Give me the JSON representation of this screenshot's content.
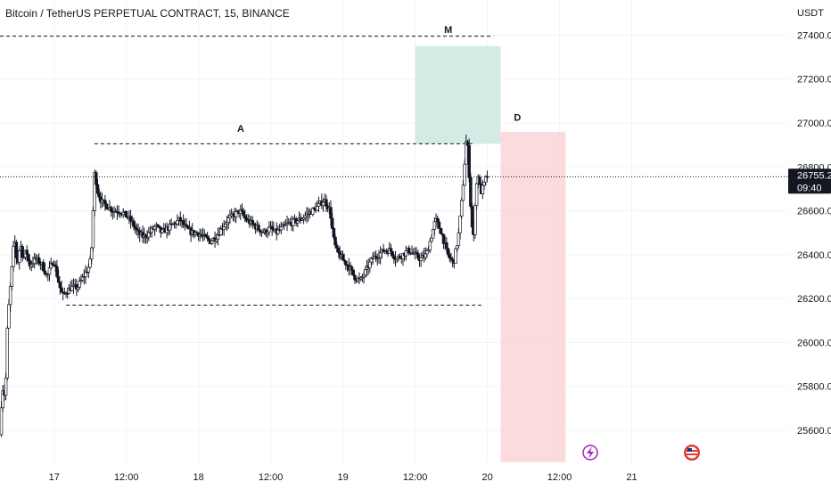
{
  "chart_title": "Bitcoin / TetherUS PERPETUAL CONTRACT, 15, BINANCE",
  "currency": "USDT",
  "colors": {
    "candle_up": "#ffffff",
    "candle_down": "#131722",
    "wick": "#131722",
    "green_zone": "#cfe9e2",
    "red_zone": "#fcd7da",
    "grid": "#f0f3fa",
    "price_tag": "#131722"
  },
  "icons": {
    "lightning": "lightning-icon",
    "flag": "us-flag-icon"
  },
  "chart_data": {
    "type": "candlestick",
    "title": "Bitcoin / TetherUS PERPETUAL CONTRACT, 15, BINANCE",
    "ylim": [
      25450,
      27560
    ],
    "y_ticks": [
      25600,
      25800,
      26000,
      26200,
      26400,
      26600,
      26800,
      27000,
      27200,
      27400
    ],
    "y_tick_labels": [
      "25600.0",
      "25800.0",
      "26000.0",
      "26200.0",
      "26400.0",
      "26600.0",
      "26800.0",
      "27000.0",
      "27200.0",
      "27400.0"
    ],
    "x_range_hours": [
      -9,
      122
    ],
    "x_ticks": [
      {
        "hour": 0,
        "label": "17"
      },
      {
        "hour": 12,
        "label": "12:00"
      },
      {
        "hour": 24,
        "label": "18"
      },
      {
        "hour": 36,
        "label": "12:00"
      },
      {
        "hour": 48,
        "label": "19"
      },
      {
        "hour": 60,
        "label": "12:00"
      },
      {
        "hour": 72,
        "label": "20"
      },
      {
        "hour": 84,
        "label": "12:00"
      },
      {
        "hour": 96,
        "label": "21"
      }
    ],
    "price_path": [
      [
        -8.9,
        25580
      ],
      [
        -8.5,
        25800
      ],
      [
        -8.0,
        25750
      ],
      [
        -7.6,
        26100
      ],
      [
        -7.0,
        26300
      ],
      [
        -6.5,
        26480
      ],
      [
        -6.0,
        26350
      ],
      [
        -5.5,
        26450
      ],
      [
        -5.0,
        26380
      ],
      [
        -4.5,
        26420
      ],
      [
        -4.0,
        26350
      ],
      [
        -3.0,
        26380
      ],
      [
        -2.0,
        26360
      ],
      [
        -1.5,
        26330
      ],
      [
        -1.0,
        26300
      ],
      [
        -0.5,
        26340
      ],
      [
        0.0,
        26380
      ],
      [
        0.5,
        26320
      ],
      [
        1.0,
        26260
      ],
      [
        1.5,
        26210
      ],
      [
        2.0,
        26230
      ],
      [
        3.0,
        26250
      ],
      [
        4.0,
        26250
      ],
      [
        5.0,
        26300
      ],
      [
        6.0,
        26350
      ],
      [
        6.3,
        26400
      ],
      [
        6.6,
        26600
      ],
      [
        6.9,
        26800
      ],
      [
        7.2,
        26700
      ],
      [
        8.0,
        26640
      ],
      [
        9.0,
        26620
      ],
      [
        10.0,
        26600
      ],
      [
        11.0,
        26600
      ],
      [
        12.0,
        26580
      ],
      [
        13.0,
        26550
      ],
      [
        14.0,
        26500
      ],
      [
        15.0,
        26480
      ],
      [
        16.0,
        26500
      ],
      [
        17.0,
        26530
      ],
      [
        18.0,
        26500
      ],
      [
        19.0,
        26520
      ],
      [
        20.0,
        26540
      ],
      [
        21.0,
        26560
      ],
      [
        22.0,
        26520
      ],
      [
        23.0,
        26500
      ],
      [
        24.0,
        26500
      ],
      [
        25.0,
        26480
      ],
      [
        26.0,
        26460
      ],
      [
        27.0,
        26480
      ],
      [
        28.0,
        26520
      ],
      [
        29.0,
        26560
      ],
      [
        30.0,
        26580
      ],
      [
        31.0,
        26600
      ],
      [
        32.0,
        26560
      ],
      [
        33.0,
        26540
      ],
      [
        34.0,
        26520
      ],
      [
        35.0,
        26500
      ],
      [
        36.0,
        26520
      ],
      [
        37.0,
        26500
      ],
      [
        38.0,
        26520
      ],
      [
        39.0,
        26540
      ],
      [
        40.0,
        26550
      ],
      [
        41.0,
        26560
      ],
      [
        42.0,
        26580
      ],
      [
        43.0,
        26600
      ],
      [
        44.0,
        26620
      ],
      [
        45.0,
        26650
      ],
      [
        46.0,
        26600
      ],
      [
        46.5,
        26480
      ],
      [
        47.0,
        26420
      ],
      [
        48.0,
        26380
      ],
      [
        49.0,
        26350
      ],
      [
        50.0,
        26300
      ],
      [
        51.0,
        26280
      ],
      [
        52.0,
        26330
      ],
      [
        53.0,
        26380
      ],
      [
        54.0,
        26400
      ],
      [
        55.0,
        26420
      ],
      [
        56.0,
        26420
      ],
      [
        57.0,
        26380
      ],
      [
        58.0,
        26400
      ],
      [
        59.0,
        26420
      ],
      [
        60.0,
        26400
      ],
      [
        61.0,
        26380
      ],
      [
        62.0,
        26400
      ],
      [
        62.8,
        26480
      ],
      [
        63.5,
        26560
      ],
      [
        64.5,
        26500
      ],
      [
        65.5,
        26400
      ],
      [
        66.5,
        26360
      ],
      [
        67.3,
        26480
      ],
      [
        67.9,
        26650
      ],
      [
        68.3,
        26800
      ],
      [
        68.7,
        26950
      ],
      [
        69.0,
        26820
      ],
      [
        69.4,
        26600
      ],
      [
        69.8,
        26450
      ],
      [
        70.2,
        26700
      ],
      [
        70.6,
        26760
      ],
      [
        71.0,
        26680
      ],
      [
        71.6,
        26720
      ],
      [
        72.0,
        26760
      ]
    ],
    "annotations": [
      {
        "label": "A",
        "hour": 31,
        "price": 26960
      },
      {
        "label": "M",
        "hour": 65.5,
        "price": 27410
      },
      {
        "label": "D",
        "hour": 77,
        "price": 27010
      }
    ],
    "levels": [
      {
        "price": 27395,
        "from_hour": -9,
        "to_hour": 73,
        "style": "dashed"
      },
      {
        "price": 26905,
        "from_hour": 6.7,
        "to_hour": 69.5,
        "style": "dashed"
      },
      {
        "price": 26170,
        "from_hour": 2.0,
        "to_hour": 71.0,
        "style": "dashed"
      }
    ],
    "zones": [
      {
        "kind": "green",
        "hour_from": 60.0,
        "hour_to": 74.2,
        "price_low": 26905,
        "price_high": 27350
      },
      {
        "kind": "red",
        "hour_from": 74.2,
        "hour_to": 85.0,
        "price_low": 25455,
        "price_high": 26960
      }
    ],
    "current_price": 26755.2,
    "current_price_label": "26755.2",
    "countdown_label": "09:40",
    "grid": true
  }
}
